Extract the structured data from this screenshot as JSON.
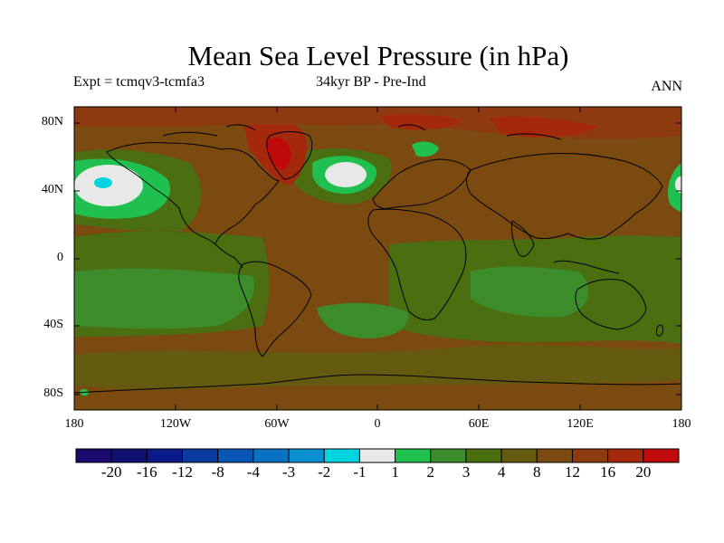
{
  "title": "Mean Sea Level Pressure (in hPa)",
  "subtitle_left": "Expt = tcmqv3-tcmfa3",
  "subtitle_center": "34kyr BP - Pre-Ind",
  "subtitle_right": "ANN",
  "lat_labels": [
    "80N",
    "40N",
    "0",
    "40S",
    "80S"
  ],
  "lon_labels": [
    "180",
    "120W",
    "60W",
    "0",
    "60E",
    "120E",
    "180"
  ],
  "colorbar": {
    "colors": [
      "#1a0a6e",
      "#10106e",
      "#0a1a8a",
      "#0a3aa0",
      "#0a56b4",
      "#0a72c4",
      "#0a90d0",
      "#00d4e0",
      "#e8e8e8",
      "#20c050",
      "#3c8c2c",
      "#4a6e10",
      "#645a10",
      "#7a4a10",
      "#8e3a10",
      "#a4280c",
      "#c00a0a"
    ],
    "labels": [
      "-20",
      "-16",
      "-12",
      "-8",
      "-4",
      "-3",
      "-2",
      "-1",
      "1",
      "2",
      "3",
      "4",
      "8",
      "12",
      "16",
      "20"
    ]
  },
  "map_colors": {
    "base": "#7a4a10",
    "dark_brown": "#645a10",
    "olive_green": "#4a6e10",
    "green": "#3c8c2c",
    "bright_green": "#20c050",
    "white": "#e8e8e8",
    "cyan": "#00d4e0",
    "red_brown": "#8e3a10",
    "red": "#a4280c",
    "deep_red": "#c00a0a",
    "coast": "#000000"
  }
}
